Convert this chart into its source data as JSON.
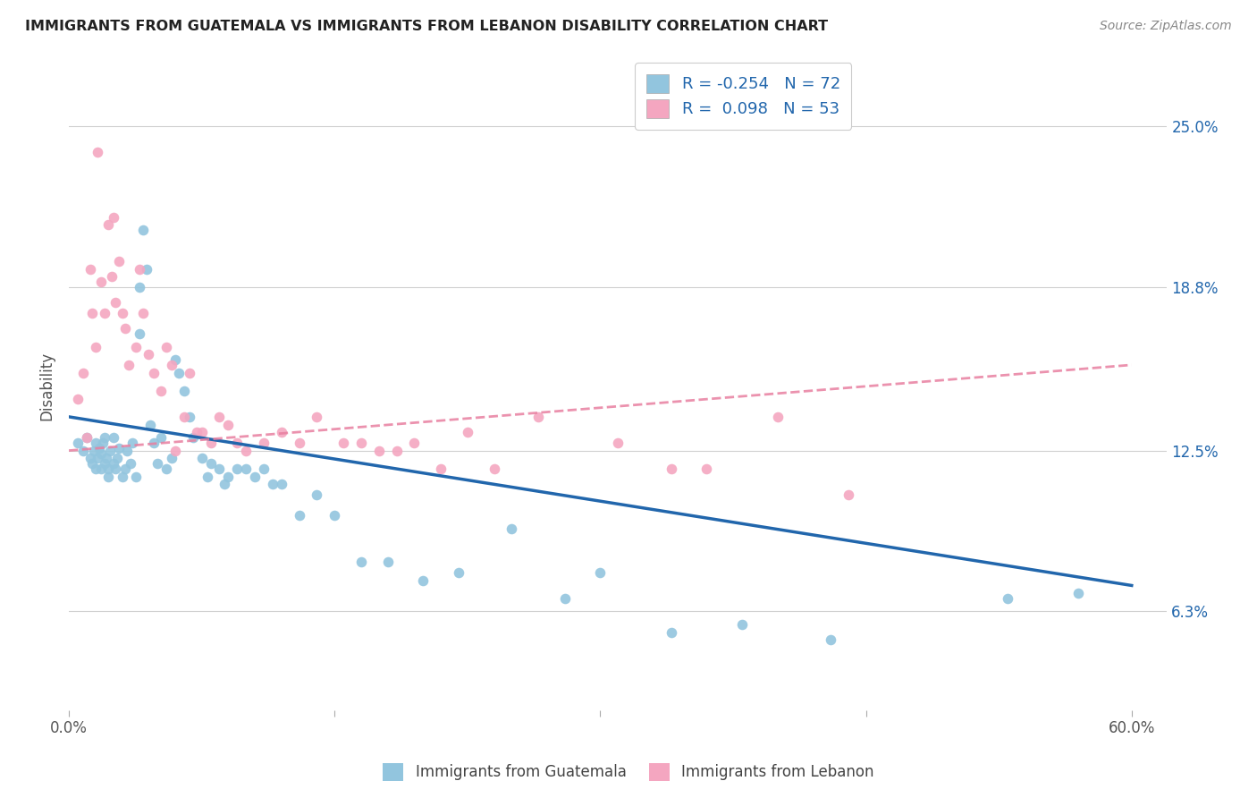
{
  "title": "IMMIGRANTS FROM GUATEMALA VS IMMIGRANTS FROM LEBANON DISABILITY CORRELATION CHART",
  "source": "Source: ZipAtlas.com",
  "ylabel": "Disability",
  "ytick_labels": [
    "6.3%",
    "12.5%",
    "18.8%",
    "25.0%"
  ],
  "ytick_values": [
    0.063,
    0.125,
    0.188,
    0.25
  ],
  "xtick_values": [
    0.0,
    0.15,
    0.3,
    0.45,
    0.6
  ],
  "xtick_labels": [
    "0.0%",
    "",
    "",
    "",
    "60.0%"
  ],
  "xlim": [
    0.0,
    0.62
  ],
  "ylim": [
    0.025,
    0.275
  ],
  "color_blue": "#92c5de",
  "color_pink": "#f4a6c0",
  "line_blue": "#2166ac",
  "line_pink": "#e87fa0",
  "R_blue": -0.254,
  "N_blue": 72,
  "R_pink": 0.098,
  "N_pink": 53,
  "bg_color": "#ffffff",
  "grid_color": "#d0d0d0",
  "blue_line_x0": 0.0,
  "blue_line_y0": 0.138,
  "blue_line_x1": 0.6,
  "blue_line_y1": 0.073,
  "pink_line_x0": 0.0,
  "pink_line_y0": 0.125,
  "pink_line_x1": 0.6,
  "pink_line_y1": 0.158,
  "guatemala_x": [
    0.005,
    0.008,
    0.01,
    0.012,
    0.013,
    0.014,
    0.015,
    0.015,
    0.016,
    0.017,
    0.018,
    0.018,
    0.019,
    0.02,
    0.02,
    0.021,
    0.022,
    0.022,
    0.023,
    0.025,
    0.025,
    0.026,
    0.027,
    0.028,
    0.03,
    0.032,
    0.033,
    0.035,
    0.036,
    0.038,
    0.04,
    0.04,
    0.042,
    0.044,
    0.046,
    0.048,
    0.05,
    0.052,
    0.055,
    0.058,
    0.06,
    0.062,
    0.065,
    0.068,
    0.07,
    0.075,
    0.078,
    0.08,
    0.085,
    0.088,
    0.09,
    0.095,
    0.1,
    0.105,
    0.11,
    0.115,
    0.12,
    0.13,
    0.14,
    0.15,
    0.165,
    0.18,
    0.2,
    0.22,
    0.25,
    0.28,
    0.3,
    0.34,
    0.38,
    0.43,
    0.53,
    0.57
  ],
  "guatemala_y": [
    0.128,
    0.125,
    0.13,
    0.122,
    0.12,
    0.125,
    0.118,
    0.128,
    0.122,
    0.126,
    0.118,
    0.124,
    0.128,
    0.12,
    0.13,
    0.122,
    0.115,
    0.118,
    0.125,
    0.12,
    0.13,
    0.118,
    0.122,
    0.126,
    0.115,
    0.118,
    0.125,
    0.12,
    0.128,
    0.115,
    0.188,
    0.17,
    0.21,
    0.195,
    0.135,
    0.128,
    0.12,
    0.13,
    0.118,
    0.122,
    0.16,
    0.155,
    0.148,
    0.138,
    0.13,
    0.122,
    0.115,
    0.12,
    0.118,
    0.112,
    0.115,
    0.118,
    0.118,
    0.115,
    0.118,
    0.112,
    0.112,
    0.1,
    0.108,
    0.1,
    0.082,
    0.082,
    0.075,
    0.078,
    0.095,
    0.068,
    0.078,
    0.055,
    0.058,
    0.052,
    0.068,
    0.07
  ],
  "lebanon_x": [
    0.005,
    0.008,
    0.01,
    0.012,
    0.013,
    0.015,
    0.016,
    0.018,
    0.02,
    0.022,
    0.024,
    0.025,
    0.026,
    0.028,
    0.03,
    0.032,
    0.034,
    0.038,
    0.04,
    0.042,
    0.045,
    0.048,
    0.052,
    0.055,
    0.058,
    0.06,
    0.065,
    0.068,
    0.072,
    0.075,
    0.08,
    0.085,
    0.09,
    0.095,
    0.1,
    0.11,
    0.12,
    0.13,
    0.14,
    0.155,
    0.165,
    0.175,
    0.185,
    0.195,
    0.21,
    0.225,
    0.24,
    0.265,
    0.31,
    0.34,
    0.36,
    0.4,
    0.44
  ],
  "lebanon_y": [
    0.145,
    0.155,
    0.13,
    0.195,
    0.178,
    0.165,
    0.24,
    0.19,
    0.178,
    0.212,
    0.192,
    0.215,
    0.182,
    0.198,
    0.178,
    0.172,
    0.158,
    0.165,
    0.195,
    0.178,
    0.162,
    0.155,
    0.148,
    0.165,
    0.158,
    0.125,
    0.138,
    0.155,
    0.132,
    0.132,
    0.128,
    0.138,
    0.135,
    0.128,
    0.125,
    0.128,
    0.132,
    0.128,
    0.138,
    0.128,
    0.128,
    0.125,
    0.125,
    0.128,
    0.118,
    0.132,
    0.118,
    0.138,
    0.128,
    0.118,
    0.118,
    0.138,
    0.108
  ]
}
